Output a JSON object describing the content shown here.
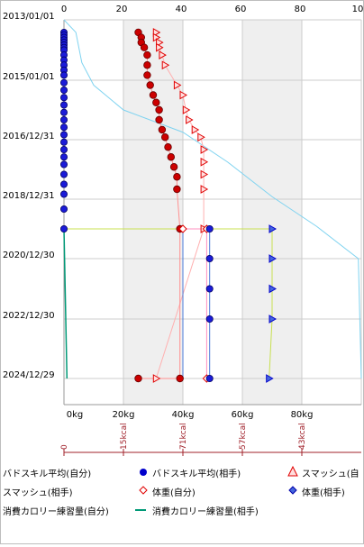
{
  "chart_data": {
    "type": "scatter",
    "orientation": "vertical-time",
    "y_date_labels": [
      "2013/01/01",
      "2015/01/01",
      "2016/12/31",
      "2018/12/31",
      "2020/12/30",
      "2022/12/30",
      "2024/12/29"
    ],
    "top_axis_ticks": [
      "0",
      "20",
      "40",
      "60",
      "80",
      "10"
    ],
    "bottom_axis_ticks": [
      "0kg",
      "20kg",
      "40kg",
      "60kg",
      "80kg"
    ],
    "kcal_axis_ticks": [
      "0",
      "15kcal",
      "71kcal",
      "57kcal",
      "43kcal"
    ],
    "xlim": [
      0,
      100
    ],
    "grid": true,
    "series": [
      {
        "name": "バドスキル平均(自分)",
        "color": "#0000cc",
        "marker": "circle",
        "points": [
          [
            0,
            "2013-06"
          ],
          [
            0,
            "2013-07"
          ],
          [
            0,
            "2013-08"
          ],
          [
            0,
            "2013-09"
          ],
          [
            0,
            "2013-10"
          ],
          [
            0,
            "2013-11"
          ],
          [
            0,
            "2013-12"
          ],
          [
            0,
            "2014-01"
          ],
          [
            0,
            "2014-03"
          ],
          [
            0,
            "2014-05"
          ],
          [
            0,
            "2014-07"
          ],
          [
            0,
            "2014-09"
          ],
          [
            0,
            "2014-11"
          ],
          [
            0,
            "2015-02"
          ],
          [
            0,
            "2015-05"
          ],
          [
            0,
            "2015-08"
          ],
          [
            0,
            "2015-11"
          ],
          [
            0,
            "2016-02"
          ],
          [
            0,
            "2016-05"
          ],
          [
            0,
            "2016-08"
          ],
          [
            0,
            "2016-11"
          ],
          [
            0,
            "2017-02"
          ],
          [
            0,
            "2017-05"
          ],
          [
            0,
            "2017-08"
          ],
          [
            0,
            "2017-11"
          ],
          [
            0,
            "2018-03"
          ],
          [
            0,
            "2018-07"
          ],
          [
            0,
            "2018-11"
          ],
          [
            0,
            "2019-05"
          ],
          [
            0,
            "2020-01"
          ]
        ]
      },
      {
        "name": "バドスキル平均(相手)",
        "color": "#0000cc",
        "marker": "circle",
        "points": [
          [
            49,
            "2020-01"
          ],
          [
            49,
            "2021-01"
          ],
          [
            49,
            "2022-01"
          ],
          [
            49,
            "2023-01"
          ],
          [
            49,
            "2025-01"
          ]
        ]
      },
      {
        "name": "スマッシュ(自分)",
        "color": "#e00000",
        "marker": "triangle-up",
        "points": [
          [
            25,
            "2013-06"
          ],
          [
            26,
            "2013-08"
          ],
          [
            26,
            "2013-10"
          ],
          [
            27,
            "2013-12"
          ],
          [
            28,
            "2014-03"
          ],
          [
            28,
            "2014-07"
          ],
          [
            28,
            "2014-11"
          ],
          [
            29,
            "2015-03"
          ],
          [
            30,
            "2015-07"
          ],
          [
            31,
            "2015-10"
          ],
          [
            32,
            "2016-01"
          ],
          [
            32,
            "2016-05"
          ],
          [
            33,
            "2016-09"
          ],
          [
            34,
            "2016-12"
          ],
          [
            35,
            "2017-04"
          ],
          [
            36,
            "2017-08"
          ],
          [
            37,
            "2017-12"
          ],
          [
            38,
            "2018-04"
          ],
          [
            38,
            "2018-09"
          ],
          [
            39,
            "2020-01"
          ],
          [
            39,
            "2025-01"
          ],
          [
            25,
            "2025-01"
          ]
        ]
      },
      {
        "name": "スマッシュ(相手)",
        "color": "#e00000",
        "marker": "triangle-right",
        "points": [
          [
            31,
            "2013-06"
          ],
          [
            31,
            "2013-08"
          ],
          [
            32,
            "2013-10"
          ],
          [
            32,
            "2013-12"
          ],
          [
            33,
            "2014-03"
          ],
          [
            34,
            "2014-07"
          ],
          [
            38,
            "2015-03"
          ],
          [
            40,
            "2015-07"
          ],
          [
            41,
            "2016-01"
          ],
          [
            42,
            "2016-05"
          ],
          [
            44,
            "2016-09"
          ],
          [
            46,
            "2016-12"
          ],
          [
            47,
            "2017-05"
          ],
          [
            47,
            "2017-10"
          ],
          [
            47,
            "2018-03"
          ],
          [
            47,
            "2018-09"
          ],
          [
            47,
            "2020-01"
          ],
          [
            31,
            "2025-01"
          ]
        ]
      },
      {
        "name": "体重(自分)",
        "color": "#ff8fbf",
        "marker": "diamond",
        "points": [
          [
            40,
            "2020-01"
          ],
          [
            48,
            "2020-01"
          ],
          [
            48,
            "2025-01"
          ]
        ]
      },
      {
        "name": "体重(相手)",
        "color": "#0000cc",
        "marker": "diamond",
        "points": [
          [
            70,
            "2020-01"
          ],
          [
            70,
            "2021-01"
          ],
          [
            70,
            "2022-01"
          ],
          [
            70,
            "2023-01"
          ],
          [
            69,
            "2025-01"
          ]
        ]
      },
      {
        "name": "消費カロリー練習量(自分)",
        "color": "#009977",
        "marker": "line",
        "points": [
          [
            0,
            "2020-01"
          ],
          [
            1,
            "2025-01"
          ]
        ]
      },
      {
        "name": "消費カロリー練習量(相手)",
        "color": "#7fd3f0",
        "marker": "line",
        "points": [
          [
            0,
            "2013-01"
          ],
          [
            4,
            "2013-06"
          ],
          [
            6,
            "2014-06"
          ],
          [
            10,
            "2015-03"
          ],
          [
            20,
            "2016-01"
          ],
          [
            40,
            "2016-10"
          ],
          [
            55,
            "2017-10"
          ],
          [
            70,
            "2018-12"
          ],
          [
            85,
            "2019-12"
          ],
          [
            99,
            "2021-01"
          ],
          [
            100,
            "2025-01"
          ]
        ]
      }
    ]
  },
  "legend": [
    {
      "label": "バドスキル平均(自分)",
      "icon": "none"
    },
    {
      "label": "バドスキル平均(相手)",
      "icon": "blue-circle"
    },
    {
      "label": "スマッシュ(自",
      "icon": "red-triangle"
    },
    {
      "label": "スマッシュ(相手)",
      "icon": "none"
    },
    {
      "label": "体重(自分)",
      "icon": "red-diamond-outline"
    },
    {
      "label": "体重(相手)",
      "icon": "blue-diamond"
    },
    {
      "label": "消費カロリー練習量(自分)",
      "icon": "none"
    },
    {
      "label": "消費カロリー練習量(相手)",
      "icon": "teal-line"
    }
  ],
  "colors": {
    "grid_band": "#efefef",
    "kcal_axis": "#a0202a",
    "frame": "#bdbdbd"
  }
}
